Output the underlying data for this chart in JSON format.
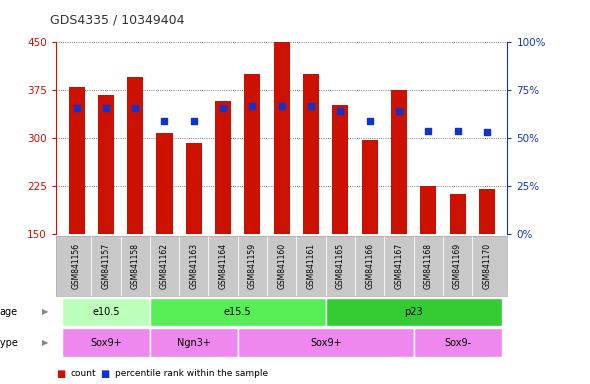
{
  "title": "GDS4335 / 10349404",
  "samples": [
    "GSM841156",
    "GSM841157",
    "GSM841158",
    "GSM841162",
    "GSM841163",
    "GSM841164",
    "GSM841159",
    "GSM841160",
    "GSM841161",
    "GSM841165",
    "GSM841166",
    "GSM841167",
    "GSM841168",
    "GSM841169",
    "GSM841170"
  ],
  "counts": [
    380,
    368,
    395,
    308,
    292,
    358,
    400,
    450,
    400,
    352,
    297,
    375,
    225,
    213,
    220
  ],
  "percentile_ranks": [
    66,
    66,
    66,
    59,
    59,
    66,
    67,
    67,
    67,
    64,
    59,
    64,
    54,
    54,
    53
  ],
  "ylim_left": [
    150,
    450
  ],
  "ylim_right": [
    0,
    100
  ],
  "yticks_left": [
    150,
    225,
    300,
    375,
    450
  ],
  "yticks_right": [
    0,
    25,
    50,
    75,
    100
  ],
  "bar_color": "#cc1100",
  "dot_color": "#1133cc",
  "bar_width": 0.55,
  "age_groups": [
    {
      "label": "e10.5",
      "start": 0,
      "end": 3,
      "color": "#bbffbb"
    },
    {
      "label": "e15.5",
      "start": 3,
      "end": 9,
      "color": "#55ee55"
    },
    {
      "label": "p23",
      "start": 9,
      "end": 15,
      "color": "#33cc33"
    }
  ],
  "cell_type_groups": [
    {
      "label": "Sox9+",
      "start": 0,
      "end": 3,
      "color": "#ee88ee"
    },
    {
      "label": "Ngn3+",
      "start": 3,
      "end": 6,
      "color": "#ee88ee"
    },
    {
      "label": "Sox9+",
      "start": 6,
      "end": 12,
      "color": "#ee88ee"
    },
    {
      "label": "Sox9-",
      "start": 12,
      "end": 15,
      "color": "#ee88ee"
    }
  ],
  "legend_items": [
    {
      "label": "count",
      "color": "#cc1100"
    },
    {
      "label": "percentile rank within the sample",
      "color": "#1133cc"
    }
  ],
  "left_axis_color": "#cc1100",
  "right_axis_color": "#1133cc",
  "background_color": "#ffffff",
  "plot_bg_color": "#ffffff",
  "grid_color": "#000000",
  "xlabel_bg_color": "#c8c8c8"
}
